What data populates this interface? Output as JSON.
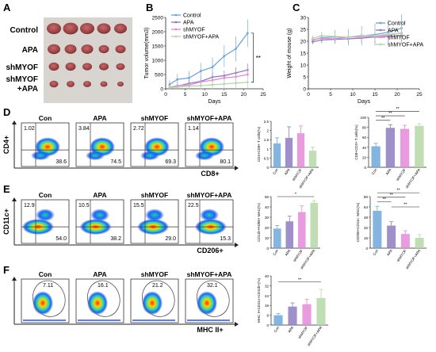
{
  "panels": {
    "A": "A",
    "B": "B",
    "C": "C",
    "D": "D",
    "E": "E",
    "F": "F"
  },
  "panelA": {
    "labels": [
      "Control",
      "APA",
      "shMYOF",
      "shMYOF\n+APA"
    ]
  },
  "colors": {
    "control": "#6fa8dc",
    "apa": "#8e7cc3",
    "shmyof": "#e48bd9",
    "combo": "#b6d7a8",
    "tissue": "#a85556"
  },
  "chart_data": [
    {
      "type": "line",
      "panel": "B",
      "ylabel": "Tumor volume(mm3)",
      "xlabel": "Days",
      "xlim": [
        0,
        25
      ],
      "ylim": [
        0,
        2500
      ],
      "xticks": [
        0,
        5,
        10,
        15,
        20,
        25
      ],
      "yticks": [
        0,
        500,
        1000,
        1500,
        2000,
        2500
      ],
      "annotation": "**",
      "x": [
        1,
        3,
        6,
        9,
        12,
        15,
        18,
        21
      ],
      "series": [
        {
          "name": "Control",
          "values": [
            150,
            330,
            380,
            620,
            760,
            1150,
            1400,
            1950
          ]
        },
        {
          "name": "APA",
          "values": [
            60,
            90,
            190,
            260,
            410,
            460,
            560,
            660
          ]
        },
        {
          "name": "shMYOF",
          "values": [
            50,
            110,
            130,
            240,
            300,
            380,
            420,
            500
          ]
        },
        {
          "name": "shMYOF+APA",
          "values": [
            40,
            60,
            90,
            110,
            140,
            170,
            200,
            230
          ]
        }
      ]
    },
    {
      "type": "line",
      "panel": "C",
      "ylabel": "Weight of mouse (g)",
      "xlabel": "Days",
      "xlim": [
        0,
        25
      ],
      "ylim": [
        0,
        30
      ],
      "xticks": [
        0,
        5,
        10,
        15,
        20,
        25
      ],
      "yticks": [
        0,
        5,
        10,
        15,
        20,
        25,
        30
      ],
      "x": [
        1,
        3,
        6,
        9,
        12,
        15,
        18,
        21
      ],
      "series": [
        {
          "name": "Control",
          "values": [
            20.5,
            21.5,
            21.8,
            21.7,
            22.3,
            22.8,
            23.8,
            25.5
          ]
        },
        {
          "name": "APA",
          "values": [
            19.8,
            20.5,
            20.8,
            21.0,
            21.3,
            21.8,
            22.0,
            22.5
          ]
        },
        {
          "name": "shMYOF",
          "values": [
            20.7,
            21.2,
            21.0,
            21.8,
            21.7,
            22.2,
            22.5,
            23.5
          ]
        },
        {
          "name": "shMYOF+APA",
          "values": [
            21.3,
            22.3,
            22.0,
            21.8,
            22.5,
            22.3,
            23.0,
            23.3
          ]
        }
      ]
    },
    {
      "type": "bar",
      "panel": "D1",
      "ylabel": "CD4+CD8+ T cells(%)",
      "categories": [
        "Con",
        "APA",
        "shMYOF",
        "shMYOF+APA"
      ],
      "values": [
        1.3,
        1.6,
        1.85,
        0.9
      ],
      "errors": [
        0.3,
        0.6,
        0.4,
        0.2
      ],
      "ylim": [
        0,
        2.5
      ]
    },
    {
      "type": "bar",
      "panel": "D2",
      "ylabel": "CD8+CD3+ T cells(%)",
      "categories": [
        "Con",
        "APA",
        "shMYOF",
        "shMYOF+APA"
      ],
      "values": [
        42,
        79,
        77,
        83
      ],
      "errors": [
        6,
        6,
        7,
        4
      ],
      "ylim": [
        0,
        100
      ],
      "annotations": [
        "**",
        "**",
        "**"
      ]
    },
    {
      "type": "bar",
      "panel": "E1",
      "ylabel": "CD11b+F4/80+ MAC(%)",
      "categories": [
        "Con",
        "APA",
        "shMYOF",
        "shMYOF+APA"
      ],
      "values": [
        19,
        26,
        35,
        44
      ],
      "errors": [
        3,
        5,
        6,
        2
      ],
      "ylim": [
        0,
        50
      ],
      "annotations": [
        "*"
      ]
    },
    {
      "type": "bar",
      "panel": "E2",
      "ylabel": "CD206+CD11c- MAC(%)",
      "categories": [
        "Con",
        "APA",
        "shMYOF",
        "shMYOF+APA"
      ],
      "values": [
        58,
        35,
        22,
        16
      ],
      "errors": [
        7,
        6,
        5,
        5
      ],
      "ylim": [
        0,
        80
      ],
      "annotations": [
        "**",
        "**",
        "**",
        "**"
      ]
    },
    {
      "type": "bar",
      "panel": "F",
      "ylabel": "MHC II+CD11c+CD11b+(%)",
      "categories": [
        "Con",
        "APA",
        "shMYOF",
        "shMYOF+APA"
      ],
      "values": [
        8,
        15,
        17,
        22
      ],
      "errors": [
        1.5,
        3,
        4,
        7
      ],
      "ylim": [
        0,
        40
      ],
      "annotations": [
        "**"
      ]
    }
  ],
  "flow": {
    "D": {
      "ylabel": "CD4+",
      "xlabel": "CD8+",
      "plots": [
        {
          "title": "Con",
          "tl": "1.02",
          "br": "38.6"
        },
        {
          "title": "APA",
          "tl": "3.84",
          "br": "74.5"
        },
        {
          "title": "shMYOF",
          "tl": "2.72",
          "br": "69.3"
        },
        {
          "title": "shMYOF+APA",
          "tl": "1.14",
          "br": "80.1"
        }
      ]
    },
    "E": {
      "ylabel": "CD11c+",
      "xlabel": "CD206+",
      "plots": [
        {
          "title": "Con",
          "tl": "12.9",
          "br": "54.0"
        },
        {
          "title": "APA",
          "tl": "10.5",
          "br": "38.2"
        },
        {
          "title": "shMYOF",
          "tl": "15.5",
          "br": "29.0"
        },
        {
          "title": "shMYOF+APA",
          "tl": "22.5",
          "br": "15.3"
        }
      ]
    },
    "F": {
      "xlabel": "MHC II+",
      "plots": [
        {
          "title": "Con",
          "gate": "7.11"
        },
        {
          "title": "APA",
          "gate": "16.1"
        },
        {
          "title": "shMYOF",
          "gate": "21.2"
        },
        {
          "title": "shMYOF+APA",
          "gate": "32.1"
        }
      ]
    }
  }
}
